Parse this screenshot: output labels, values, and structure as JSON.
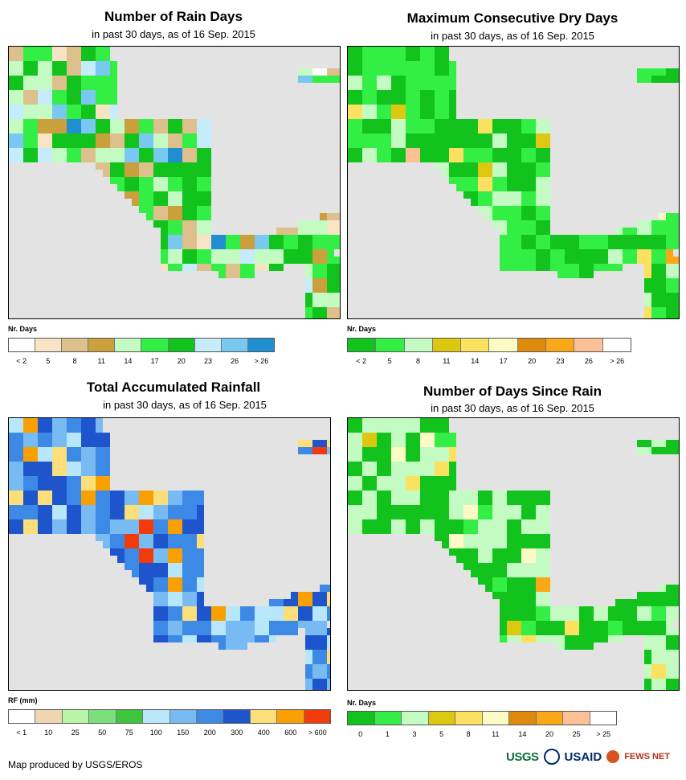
{
  "panels": [
    {
      "title": "Number of Rain Days",
      "subtitle": "in past 30 days, as of 16 Sep. 2015",
      "legend_label": "Nr. Days",
      "legend_colors": [
        "#ffffff",
        "#f7e4c4",
        "#ddc08c",
        "#caa03c",
        "#c3fbc3",
        "#33ee44",
        "#11c31c",
        "#c4ecfa",
        "#79c8ef",
        "#1f8fd0"
      ],
      "legend_ticks": [
        "< 2",
        "5",
        "8",
        "11",
        "14",
        "17",
        "20",
        "23",
        "26",
        "> 26"
      ]
    },
    {
      "title": "Maximum Consecutive Dry Days",
      "subtitle": "in past 30 days, as of 16 Sep. 2015",
      "legend_label": "Nr. Days",
      "legend_colors": [
        "#11c31c",
        "#33ee44",
        "#c3fbc3",
        "#dcc810",
        "#fbe160",
        "#fdfbc5",
        "#de8a0c",
        "#f9a818",
        "#fbc095",
        "#ffffff"
      ],
      "legend_ticks": [
        "< 2",
        "5",
        "8",
        "11",
        "14",
        "17",
        "20",
        "23",
        "26",
        "> 26"
      ]
    },
    {
      "title": "Total Accumulated Rainfall",
      "subtitle": "in past 30 days, as of 16 Sep. 2015",
      "legend_label": "RF (mm)",
      "legend_colors": [
        "#ffffff",
        "#f0d6b0",
        "#b8f5a6",
        "#7be07b",
        "#3cc63c",
        "#b8e7fb",
        "#78baf2",
        "#3c8ae6",
        "#1f55cc",
        "#fcde7a",
        "#f9a000",
        "#f23a0b"
      ],
      "legend_ticks": [
        "< 1",
        "10",
        "25",
        "50",
        "75",
        "100",
        "150",
        "200",
        "300",
        "400",
        "600",
        "> 600"
      ]
    },
    {
      "title": "Number of Days Since Rain",
      "subtitle": "in past 30 days, as of 16 Sep. 2015",
      "legend_label": "Nr. Days",
      "legend_colors": [
        "#11c31c",
        "#33ee44",
        "#c3fbc3",
        "#dcc810",
        "#fbe160",
        "#fdfbc5",
        "#de8a0c",
        "#f9a818",
        "#fbc095",
        "#ffffff"
      ],
      "legend_ticks": [
        "0",
        "1",
        "3",
        "5",
        "8",
        "11",
        "14",
        "20",
        "25",
        "> 25"
      ]
    }
  ],
  "credit": "Map produced by USGS/EROS",
  "logos": {
    "usgs": "USGS",
    "usaid": "USAID",
    "fews": "FEWS NET"
  },
  "colors": {
    "ocean": "#e3e3e3",
    "border": "#000000"
  }
}
